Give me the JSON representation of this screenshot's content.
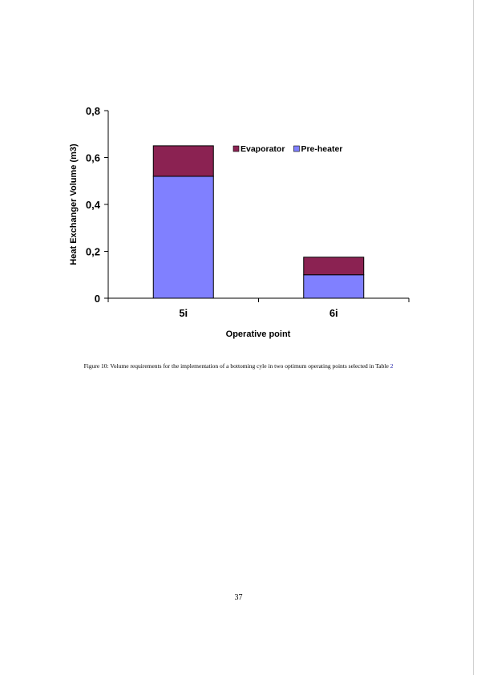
{
  "chart_data": {
    "type": "bar",
    "stacked": true,
    "categories": [
      "5i",
      "6i"
    ],
    "series": [
      {
        "name": "Pre-heater",
        "values": [
          0.52,
          0.1
        ],
        "color": "#8080ff"
      },
      {
        "name": "Evaporator",
        "values": [
          0.13,
          0.075
        ],
        "color": "#8b2252"
      }
    ],
    "legend_order": [
      "Evaporator",
      "Pre-heater"
    ],
    "legend_position": "top-right",
    "xlabel": "Operative point",
    "ylabel": "Heat Exchanger Volume (m3)",
    "ylim": [
      0,
      0.8
    ],
    "yticks": [
      0,
      0.2,
      0.4,
      0.6,
      0.8
    ],
    "ytick_labels": [
      "0",
      "0,2",
      "0,4",
      "0,6",
      "0,8"
    ],
    "grid": false
  },
  "caption": {
    "text": "Figure 10: Volume requirements for the implementation of a bottoming cyle in two optimum operating points selected in Table",
    "ref": "2"
  },
  "page_number": "37"
}
